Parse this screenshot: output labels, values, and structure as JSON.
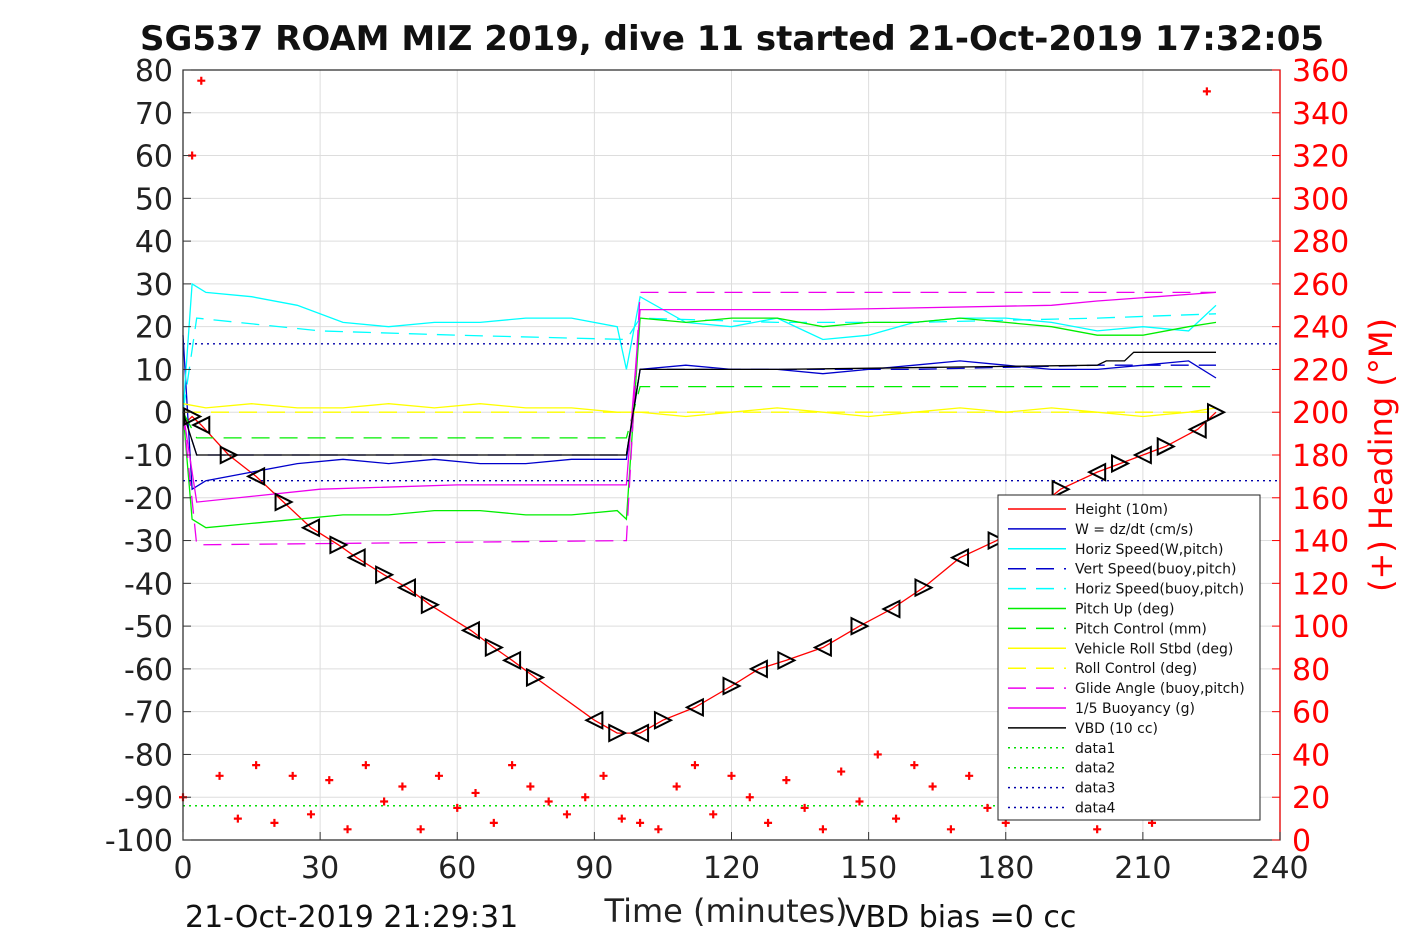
{
  "chart_data": {
    "type": "line",
    "title": "SG537 ROAM MIZ 2019, dive 11 started 21-Oct-2019 17:32:05",
    "xlabel": "Time (minutes)",
    "ylabel_right": "(+) Heading (°M)",
    "xlim": [
      0,
      240
    ],
    "ylim_left": [
      -100,
      80
    ],
    "ylim_right": [
      0,
      360
    ],
    "xticks": [
      "0",
      "30",
      "60",
      "90",
      "120",
      "150",
      "180",
      "210",
      "240"
    ],
    "yticks_left": [
      "80",
      "70",
      "60",
      "50",
      "40",
      "30",
      "20",
      "10",
      "0",
      "-10",
      "-20",
      "-30",
      "-40",
      "-50",
      "-60",
      "-70",
      "-80",
      "-90",
      "-100"
    ],
    "yticks_right": [
      "360",
      "340",
      "320",
      "300",
      "280",
      "260",
      "240",
      "220",
      "200",
      "180",
      "160",
      "140",
      "120",
      "100",
      "80",
      "60",
      "40",
      "20",
      "0"
    ],
    "grid": true,
    "legend_position": "lower-right",
    "colors": {
      "height": "#ff0000",
      "w": "#0000cc",
      "horiz_speed_w": "#00ffff",
      "vert_speed_buoy": "#0000cc",
      "horiz_speed_buoy": "#00ffff",
      "pitch_up": "#00ee00",
      "pitch_control": "#00ee00",
      "roll": "#ffff00",
      "roll_control": "#ffff00",
      "glide_angle": "#ee00ee",
      "buoyancy": "#ee00ee",
      "vbd": "#000000",
      "heading": "#ff0000"
    },
    "series": [
      {
        "name": "Height (10m)",
        "x": [
          0,
          1,
          2,
          4,
          10,
          16,
          22,
          28,
          34,
          38,
          44,
          49,
          54,
          63,
          68,
          72,
          77,
          90,
          95,
          100,
          105,
          112,
          120,
          126,
          132,
          140,
          148,
          155,
          162,
          170,
          178,
          185,
          192,
          200,
          205,
          210,
          215,
          222,
          226
        ],
        "values": [
          -2,
          -2,
          -1,
          -3,
          -10,
          -15,
          -21,
          -27,
          -31,
          -34,
          -38,
          -41,
          -45,
          -51,
          -55,
          -58,
          -62,
          -72,
          -75,
          -75,
          -72,
          -69,
          -64,
          -60,
          -58,
          -55,
          -50,
          -46,
          -41,
          -34,
          -30,
          -24,
          -18,
          -14,
          -12,
          -10,
          -8,
          -4,
          0
        ]
      },
      {
        "name": "W = dz/dt (cm/s)",
        "x": [
          0,
          2,
          5,
          15,
          25,
          35,
          45,
          55,
          65,
          75,
          85,
          95,
          97,
          100,
          110,
          120,
          130,
          140,
          150,
          160,
          170,
          180,
          190,
          200,
          210,
          220,
          226
        ],
        "values": [
          18,
          -18,
          -16,
          -14,
          -12,
          -11,
          -12,
          -11,
          -12,
          -12,
          -11,
          -11,
          -11,
          10,
          11,
          10,
          10,
          9,
          10,
          11,
          12,
          11,
          10,
          10,
          11,
          12,
          8
        ]
      },
      {
        "name": "Horiz Speed(W,pitch)",
        "x": [
          0,
          2,
          5,
          15,
          25,
          35,
          45,
          55,
          65,
          75,
          85,
          95,
          97,
          100,
          110,
          120,
          130,
          140,
          150,
          160,
          170,
          180,
          190,
          200,
          210,
          220,
          226
        ],
        "values": [
          0,
          30,
          28,
          27,
          25,
          21,
          20,
          21,
          21,
          22,
          22,
          20,
          10,
          27,
          21,
          20,
          22,
          17,
          18,
          21,
          22,
          22,
          21,
          19,
          20,
          19,
          25
        ]
      },
      {
        "name": "Vert Speed(buoy,pitch)",
        "x": [
          0,
          3,
          30,
          60,
          97,
          100,
          130,
          160,
          200,
          226
        ],
        "values": [
          0,
          -10,
          -10,
          -10,
          -10,
          10,
          10,
          10,
          11,
          11
        ]
      },
      {
        "name": "Horiz Speed(buoy,pitch)",
        "x": [
          0,
          3,
          30,
          60,
          97,
          100,
          130,
          160,
          200,
          226
        ],
        "values": [
          0,
          22,
          19,
          18,
          17,
          22,
          21,
          21,
          22,
          23
        ]
      },
      {
        "name": "Pitch Up (deg)",
        "x": [
          0,
          2,
          5,
          15,
          25,
          35,
          45,
          55,
          65,
          75,
          85,
          95,
          97,
          100,
          110,
          120,
          130,
          140,
          150,
          160,
          170,
          180,
          190,
          200,
          210,
          220,
          226
        ],
        "values": [
          0,
          -25,
          -27,
          -26,
          -25,
          -24,
          -24,
          -23,
          -23,
          -24,
          -24,
          -23,
          -25,
          22,
          21,
          22,
          22,
          20,
          21,
          21,
          22,
          21,
          20,
          18,
          18,
          20,
          21
        ]
      },
      {
        "name": "Pitch Control (mm)",
        "x": [
          0,
          3,
          97,
          100,
          226
        ],
        "values": [
          0,
          -6,
          -6,
          6,
          6
        ]
      },
      {
        "name": "Vehicle Roll Stbd (deg)",
        "x": [
          0,
          5,
          15,
          25,
          35,
          45,
          55,
          65,
          75,
          85,
          95,
          100,
          110,
          120,
          130,
          140,
          150,
          160,
          170,
          180,
          190,
          200,
          210,
          220,
          226
        ],
        "values": [
          2,
          1,
          2,
          1,
          1,
          2,
          1,
          2,
          1,
          1,
          0,
          0,
          -1,
          0,
          1,
          0,
          -1,
          0,
          1,
          0,
          1,
          0,
          -1,
          0,
          1
        ]
      },
      {
        "name": "Roll Control (deg)",
        "x": [
          0,
          226
        ],
        "values": [
          0,
          0
        ]
      },
      {
        "name": "Glide Angle (buoy,pitch)",
        "x": [
          0,
          3,
          97,
          100,
          226
        ],
        "values": [
          0,
          -31,
          -30,
          28,
          28
        ]
      },
      {
        "name": "1/5 Buoyancy (g)",
        "x": [
          0,
          3,
          30,
          60,
          97,
          100,
          140,
          190,
          200,
          226
        ],
        "values": [
          0,
          -21,
          -18,
          -17,
          -17,
          24,
          24,
          25,
          26,
          28
        ]
      },
      {
        "name": "VBD (10 cc)",
        "x": [
          0,
          3,
          97,
          100,
          130,
          200,
          202,
          206,
          208,
          226
        ],
        "values": [
          0,
          -10,
          -10,
          10,
          10,
          11,
          12,
          12,
          14,
          14
        ]
      },
      {
        "name": "data1",
        "x": [
          0,
          226
        ],
        "values": [
          -92,
          -92
        ]
      },
      {
        "name": "data2",
        "x": [
          0,
          226
        ],
        "values": [
          -92,
          -92
        ]
      },
      {
        "name": "data3",
        "x": [
          0,
          240
        ],
        "values": [
          16,
          16
        ]
      },
      {
        "name": "data4",
        "x": [
          0,
          240
        ],
        "values": [
          -16,
          -16
        ]
      }
    ],
    "heading_series": {
      "axis": "right",
      "x": [
        0,
        2,
        4,
        8,
        12,
        16,
        20,
        24,
        28,
        32,
        36,
        40,
        44,
        48,
        52,
        56,
        60,
        64,
        68,
        72,
        76,
        80,
        84,
        88,
        92,
        96,
        100,
        104,
        108,
        112,
        116,
        120,
        124,
        128,
        132,
        136,
        140,
        144,
        148,
        152,
        156,
        160,
        164,
        168,
        172,
        176,
        180,
        184,
        188,
        192,
        196,
        200,
        204,
        208,
        212,
        216,
        220,
        224
      ],
      "values": [
        20,
        320,
        355,
        30,
        10,
        35,
        8,
        30,
        12,
        28,
        5,
        35,
        18,
        25,
        5,
        30,
        15,
        22,
        8,
        35,
        25,
        18,
        12,
        20,
        30,
        10,
        8,
        5,
        25,
        35,
        12,
        30,
        20,
        8,
        28,
        15,
        5,
        32,
        18,
        40,
        10,
        35,
        25,
        5,
        30,
        15,
        8,
        28,
        20,
        35,
        12,
        5,
        30,
        18,
        8,
        22,
        12,
        350
      ]
    },
    "footer_left": "21-Oct-2019 21:29:31",
    "footer_right": "VBD bias =0 cc"
  }
}
